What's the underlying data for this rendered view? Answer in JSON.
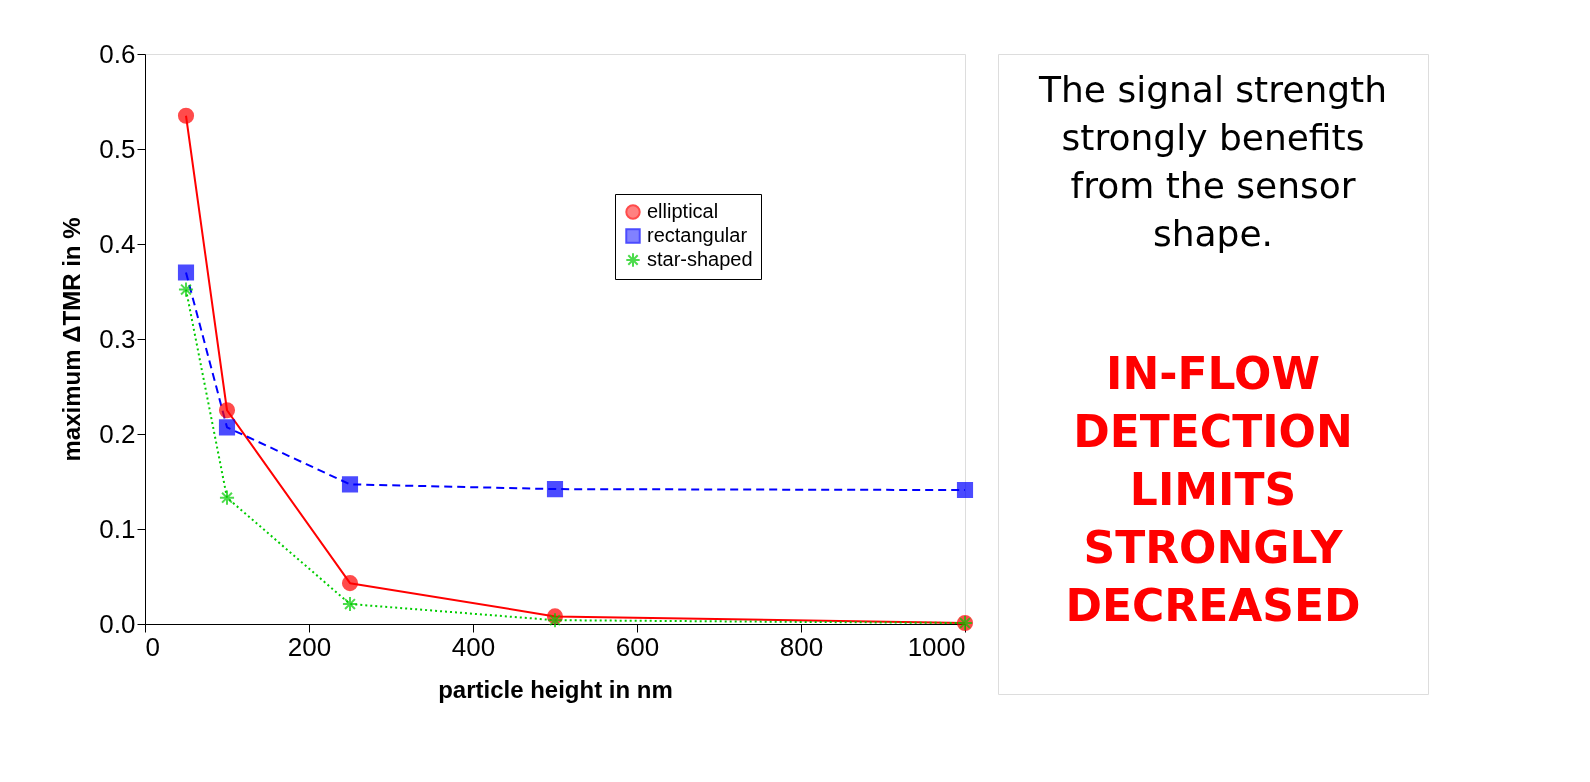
{
  "chart_data": {
    "type": "line",
    "xlabel": "particle height in nm",
    "ylabel": "maximum ΔTMR in %",
    "x": [
      50,
      100,
      250,
      500,
      1000
    ],
    "series": [
      {
        "name": "elliptical",
        "color": "#ff0000",
        "marker": "circle",
        "line_style": "solid",
        "values": [
          0.535,
          0.225,
          0.043,
          0.008,
          0.001
        ]
      },
      {
        "name": "rectangular",
        "color": "#0000ff",
        "marker": "square",
        "line_style": "dashed",
        "values": [
          0.37,
          0.207,
          0.147,
          0.142,
          0.141
        ]
      },
      {
        "name": "star-shaped",
        "color": "#00cc00",
        "marker": "cross",
        "line_style": "dotted",
        "values": [
          0.352,
          0.133,
          0.021,
          0.004,
          0.001
        ]
      }
    ],
    "xlim": [
      0,
      1000
    ],
    "xticks": [
      0,
      200,
      400,
      600,
      800,
      1000
    ],
    "ylim": [
      0,
      0.6
    ],
    "yticks": [
      {
        "value": 0,
        "label": "0.0"
      },
      0.1,
      0.2,
      0.3,
      0.4,
      0.5,
      0.6
    ],
    "grid": false,
    "legend": "top right",
    "annotations": [
      "The signal strength\nstrongly benefits\nfrom the sensor\nshape.",
      "IN-FLOW\nDETECTION\nLIMITS\nSTRONGLY\nDECREASED"
    ]
  }
}
